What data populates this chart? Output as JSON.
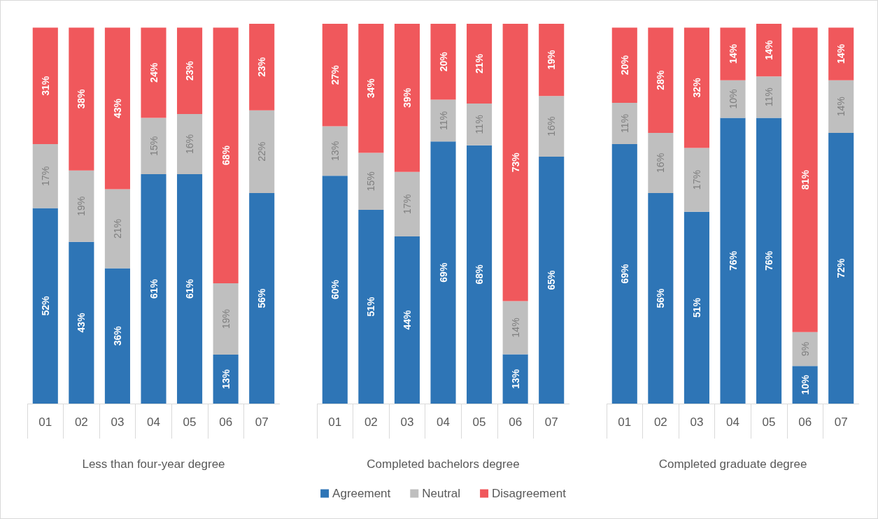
{
  "chart_data": [
    {
      "type": "bar",
      "stacked": true,
      "xlabel": "Less than four-year degree",
      "categories": [
        "01",
        "02",
        "03",
        "04",
        "05",
        "06",
        "07"
      ],
      "legend": false,
      "series": [
        {
          "color": "#2e75b6",
          "values": [
            52,
            43,
            36,
            61,
            61,
            13,
            56
          ],
          "value_labels": [
            "52%",
            "43%",
            "36%",
            "61%",
            "61%",
            "13%",
            "56%"
          ]
        },
        {
          "color": "#bfbfbf",
          "values": [
            17,
            19,
            21,
            15,
            16,
            19,
            22
          ],
          "value_labels": [
            "17%",
            "19%",
            "21%",
            "15%",
            "16%",
            "19%",
            "22%"
          ]
        },
        {
          "color": "#f0585c",
          "values": [
            31,
            38,
            43,
            24,
            23,
            68,
            23
          ],
          "value_labels": [
            "31%",
            "38%",
            "43%",
            "24%",
            "23%",
            "68%",
            "23%"
          ]
        }
      ]
    },
    {
      "type": "bar",
      "stacked": true,
      "xlabel": "Completed bachelors degree",
      "categories": [
        "01",
        "02",
        "03",
        "04",
        "05",
        "06",
        "07"
      ],
      "legend": "bottom",
      "series": [
        {
          "name": "Agreement",
          "color": "#2e75b6",
          "values": [
            60,
            51,
            44,
            69,
            68,
            13,
            65
          ],
          "value_labels": [
            "60%",
            "51%",
            "44%",
            "69%",
            "68%",
            "13%",
            "65%"
          ]
        },
        {
          "name": "Neutral",
          "color": "#bfbfbf",
          "values": [
            13,
            15,
            17,
            11,
            11,
            14,
            16
          ],
          "value_labels": [
            "13%",
            "15%",
            "17%",
            "11%",
            "11%",
            "14%",
            "16%"
          ]
        },
        {
          "name": "Disagreement",
          "color": "#f0585c",
          "values": [
            27,
            34,
            39,
            20,
            21,
            73,
            19
          ],
          "value_labels": [
            "27%",
            "34%",
            "39%",
            "20%",
            "21%",
            "73%",
            "19%"
          ]
        }
      ]
    },
    {
      "type": "bar",
      "stacked": true,
      "xlabel": "Completed graduate degree",
      "categories": [
        "01",
        "02",
        "03",
        "04",
        "05",
        "06",
        "07"
      ],
      "legend": false,
      "series": [
        {
          "color": "#2e75b6",
          "values": [
            69,
            56,
            51,
            76,
            76,
            10,
            72
          ],
          "value_labels": [
            "69%",
            "56%",
            "51%",
            "76%",
            "76%",
            "10%",
            "72%"
          ]
        },
        {
          "color": "#bfbfbf",
          "values": [
            11,
            16,
            17,
            10,
            11,
            9,
            14
          ],
          "value_labels": [
            "11%",
            "16%",
            "17%",
            "10%",
            "11%",
            "9%",
            "14%"
          ]
        },
        {
          "color": "#f0585c",
          "values": [
            20,
            28,
            32,
            14,
            14,
            81,
            14
          ],
          "value_labels": [
            "20%",
            "28%",
            "32%",
            "14%",
            "14%",
            "81%",
            "14%"
          ]
        }
      ]
    }
  ]
}
